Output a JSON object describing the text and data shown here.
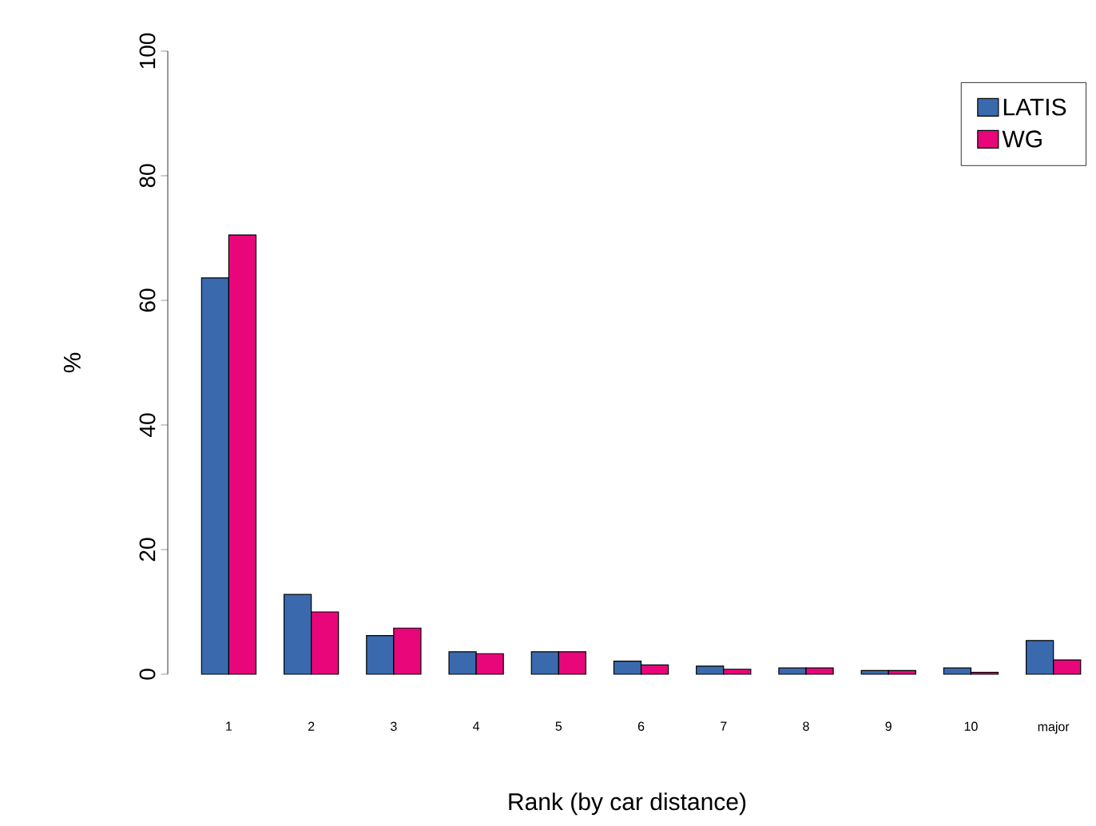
{
  "chart_data": {
    "type": "bar",
    "xlabel": "Rank (by car distance)",
    "ylabel": "%",
    "categories": [
      "1",
      "2",
      "3",
      "4",
      "5",
      "6",
      "7",
      "8",
      "9",
      "10",
      "major"
    ],
    "series": [
      {
        "name": "LATIS",
        "color": "#3a6aad",
        "values": [
          63.6,
          12.8,
          6.2,
          3.6,
          3.6,
          2.1,
          1.3,
          1.0,
          0.6,
          1.0,
          5.4
        ]
      },
      {
        "name": "WG",
        "color": "#e8067a",
        "values": [
          70.5,
          10.0,
          7.4,
          3.3,
          3.6,
          1.5,
          0.8,
          1.0,
          0.6,
          0.3,
          2.3
        ]
      }
    ],
    "ylim": [
      0,
      100
    ],
    "yticks": [
      0,
      20,
      40,
      60,
      80,
      100
    ],
    "grid": false,
    "legend": "top right"
  }
}
